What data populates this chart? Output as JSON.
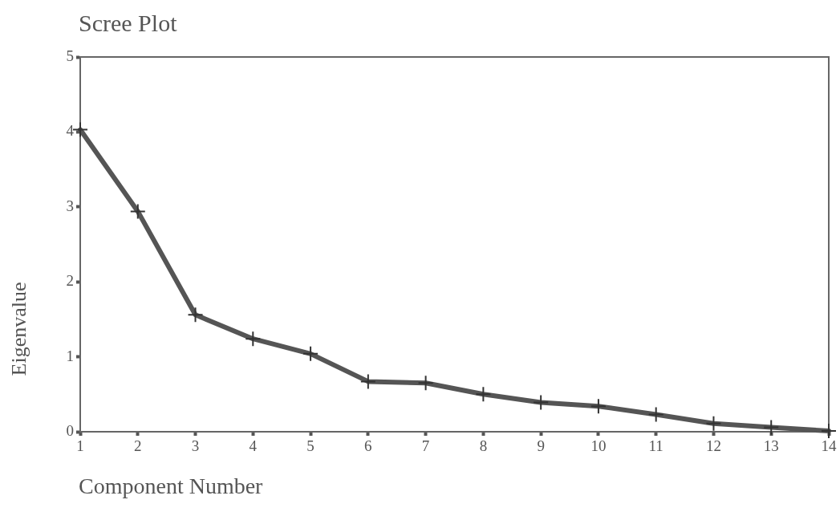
{
  "chart_data": {
    "type": "line",
    "title": "Scree Plot",
    "xlabel": "Component Number",
    "ylabel": "Eigenvalue",
    "x": [
      1,
      2,
      3,
      4,
      5,
      6,
      7,
      8,
      9,
      10,
      11,
      12,
      13,
      14
    ],
    "series": [
      {
        "color": "#555555",
        "values": [
          4.03,
          2.94,
          1.56,
          1.24,
          1.04,
          0.67,
          0.65,
          0.5,
          0.39,
          0.34,
          0.23,
          0.11,
          0.06,
          0.01
        ]
      }
    ],
    "xlim": [
      1,
      14
    ],
    "xticks": [
      1,
      2,
      3,
      4,
      5,
      6,
      7,
      8,
      9,
      10,
      11,
      12,
      13,
      14
    ],
    "ylim": [
      0,
      5
    ],
    "yticks": [
      0,
      1,
      2,
      3,
      4,
      5
    ],
    "grid": false,
    "legend": false,
    "marker": "cross",
    "line_style": "solid"
  }
}
